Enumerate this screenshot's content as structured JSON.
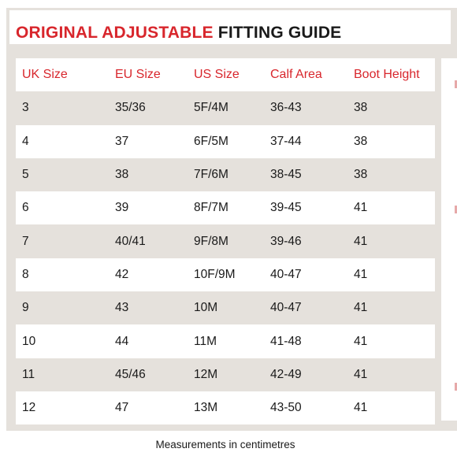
{
  "title": {
    "red_part": "ORIGINAL ADJUSTABLE",
    "black_part": " FITTING GUIDE"
  },
  "headers": [
    "UK Size",
    "EU Size",
    "US Size",
    "Calf Area",
    "Boot Height"
  ],
  "rows": [
    [
      "3",
      "35/36",
      "5F/4M",
      "36-43",
      "38"
    ],
    [
      "4",
      "37",
      "6F/5M",
      "37-44",
      "38"
    ],
    [
      "5",
      "38",
      "7F/6M",
      "38-45",
      "38"
    ],
    [
      "6",
      "39",
      "8F/7M",
      "39-45",
      "41"
    ],
    [
      "7",
      "40/41",
      "9F/8M",
      "39-46",
      "41"
    ],
    [
      "8",
      "42",
      "10F/9M",
      "40-47",
      "41"
    ],
    [
      "9",
      "43",
      "10M",
      "40-47",
      "41"
    ],
    [
      "10",
      "44",
      "11M",
      "41-48",
      "41"
    ],
    [
      "11",
      "45/46",
      "12M",
      "42-49",
      "41"
    ],
    [
      "12",
      "47",
      "13M",
      "43-50",
      "41"
    ]
  ],
  "footer": "Measurements in centimetres",
  "colors": {
    "accent": "#d8262c",
    "background": "#e5e1dc",
    "stripe": "#ffffff"
  }
}
